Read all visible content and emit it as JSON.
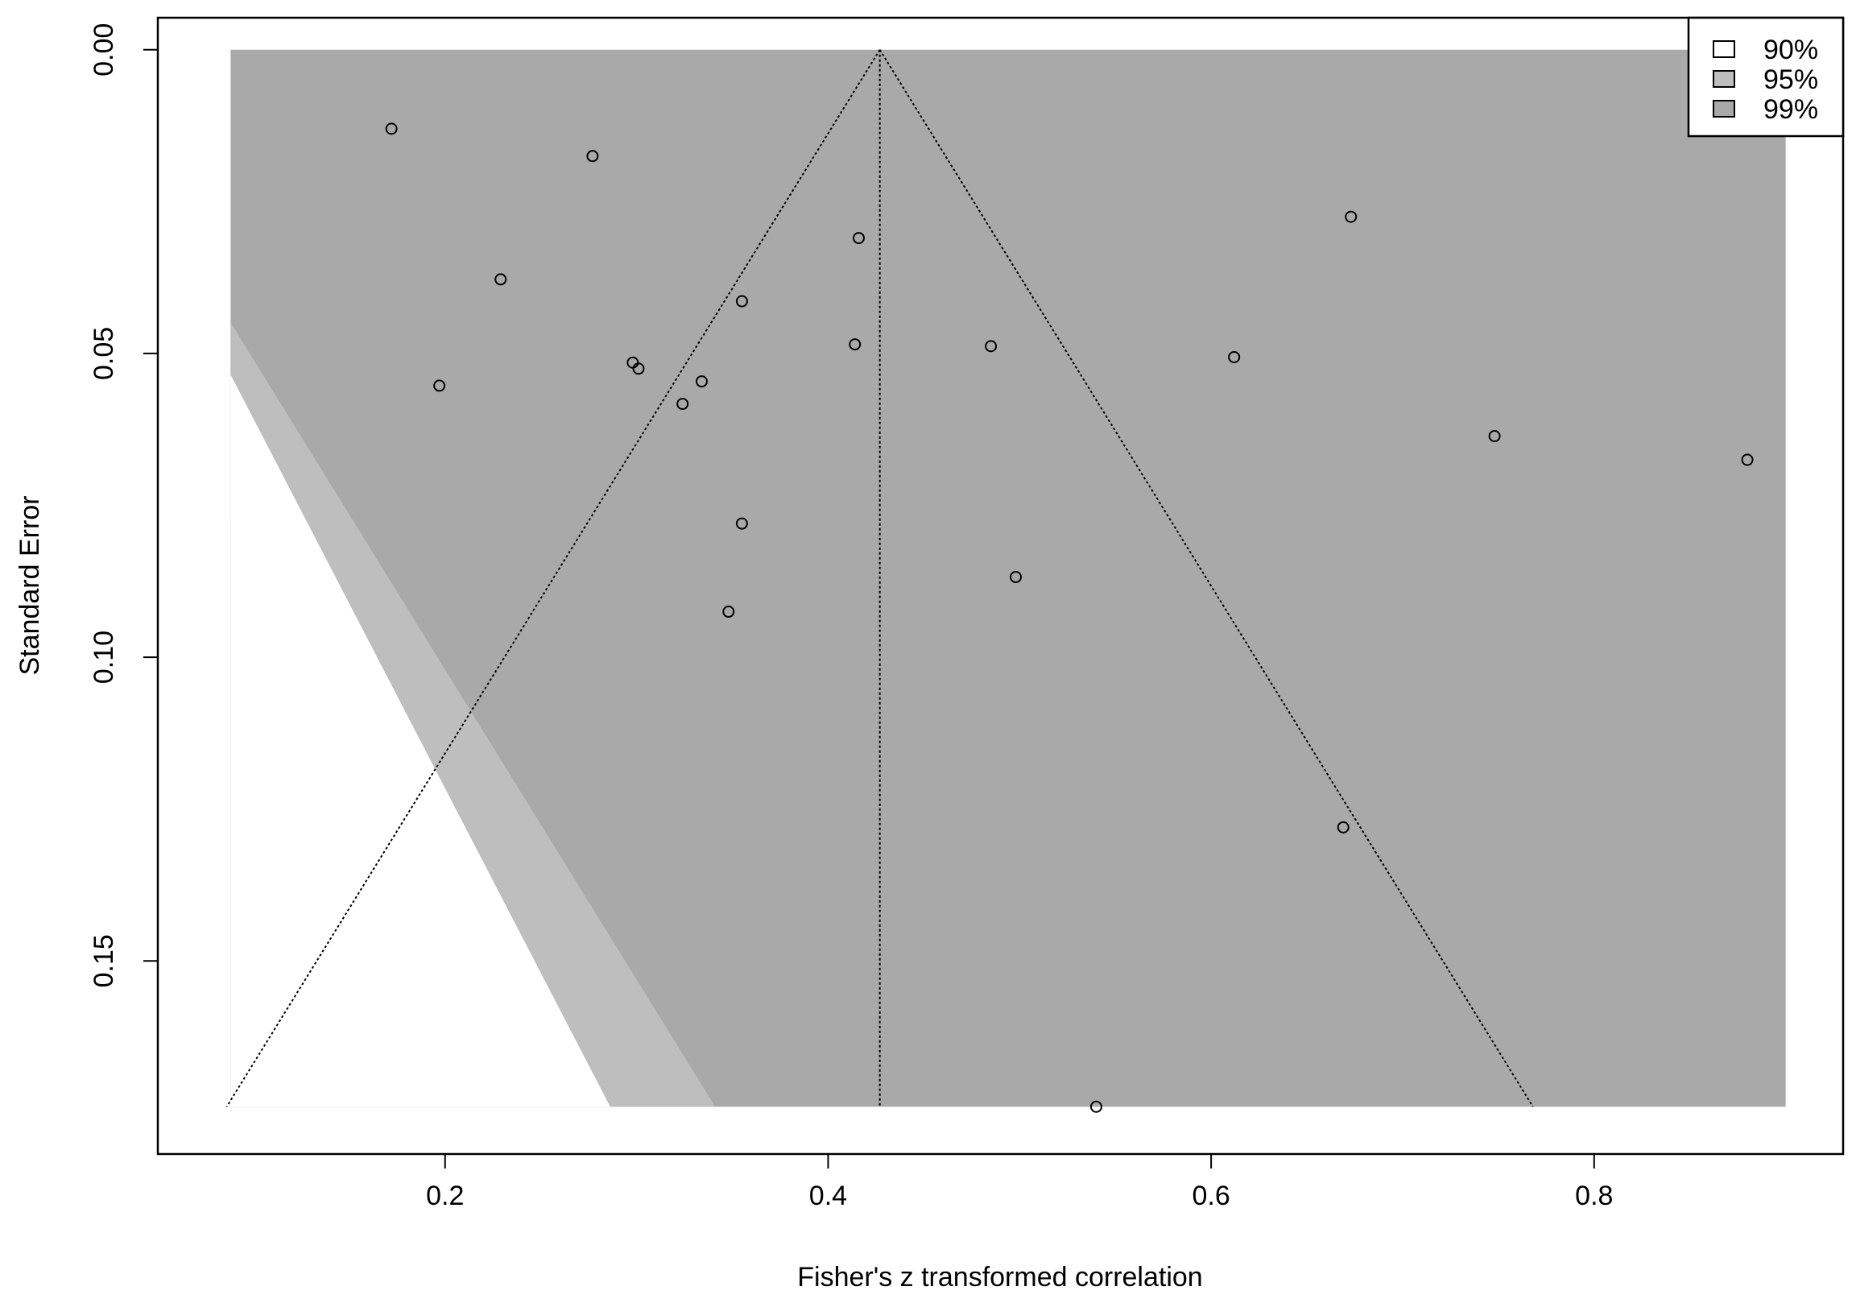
{
  "chart_data": {
    "type": "scatter",
    "subtype": "contour-enhanced funnel plot",
    "title": "",
    "xlabel": "Fisher's z transformed correlation",
    "ylabel": "Standard Error",
    "xlim": [
      0.05,
      0.93
    ],
    "ylim": [
      0.18,
      0.0
    ],
    "y_axis_reversed": true,
    "x_ticks": [
      0.2,
      0.4,
      0.6,
      0.8
    ],
    "x_tick_labels": [
      "0.2",
      "0.4",
      "0.6",
      "0.8"
    ],
    "y_ticks": [
      0.0,
      0.05,
      0.1,
      0.15
    ],
    "y_tick_labels": [
      "0.00",
      "0.05",
      "0.10",
      "0.15"
    ],
    "grid": false,
    "legend_position": "top-right",
    "legend": [
      {
        "label": "90%",
        "color": "#ffffff"
      },
      {
        "label": "95%",
        "color": "#bebebe"
      },
      {
        "label": "99%",
        "color": "#a9a9a9"
      }
    ],
    "region_bounds": {
      "x": [
        0.088,
        0.9
      ],
      "se": [
        0.0,
        0.174
      ]
    },
    "contour_lines": {
      "z90": 1.6449,
      "z95": 1.96,
      "z99": 2.5758
    },
    "pooled_estimate": 0.427,
    "points": [
      {
        "x": 0.172,
        "y": 0.013
      },
      {
        "x": 0.277,
        "y": 0.0175
      },
      {
        "x": 0.229,
        "y": 0.0378
      },
      {
        "x": 0.197,
        "y": 0.0553
      },
      {
        "x": 0.298,
        "y": 0.0515
      },
      {
        "x": 0.301,
        "y": 0.0525
      },
      {
        "x": 0.334,
        "y": 0.0546
      },
      {
        "x": 0.324,
        "y": 0.0583
      },
      {
        "x": 0.355,
        "y": 0.0414
      },
      {
        "x": 0.355,
        "y": 0.078
      },
      {
        "x": 0.348,
        "y": 0.0925
      },
      {
        "x": 0.416,
        "y": 0.031
      },
      {
        "x": 0.414,
        "y": 0.0485
      },
      {
        "x": 0.485,
        "y": 0.0488
      },
      {
        "x": 0.498,
        "y": 0.0868
      },
      {
        "x": 0.612,
        "y": 0.0506
      },
      {
        "x": 0.673,
        "y": 0.0275
      },
      {
        "x": 0.669,
        "y": 0.128
      },
      {
        "x": 0.748,
        "y": 0.0636
      },
      {
        "x": 0.88,
        "y": 0.0675
      },
      {
        "x": 0.54,
        "y": 0.174
      }
    ]
  }
}
